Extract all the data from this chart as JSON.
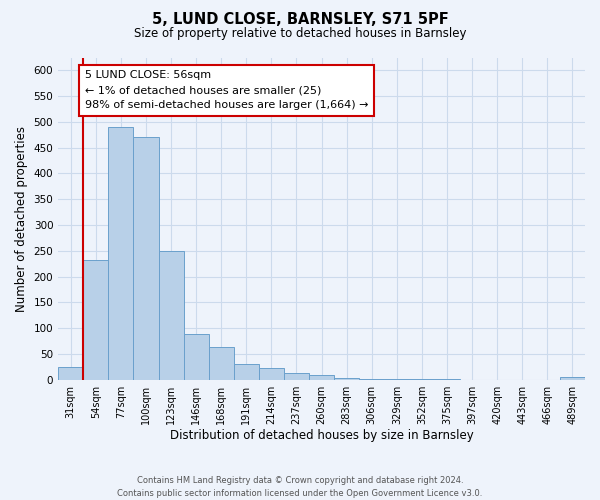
{
  "title": "5, LUND CLOSE, BARNSLEY, S71 5PF",
  "subtitle": "Size of property relative to detached houses in Barnsley",
  "xlabel": "Distribution of detached houses by size in Barnsley",
  "ylabel": "Number of detached properties",
  "footnote1": "Contains HM Land Registry data © Crown copyright and database right 2024.",
  "footnote2": "Contains public sector information licensed under the Open Government Licence v3.0.",
  "bar_labels": [
    "31sqm",
    "54sqm",
    "77sqm",
    "100sqm",
    "123sqm",
    "146sqm",
    "168sqm",
    "191sqm",
    "214sqm",
    "237sqm",
    "260sqm",
    "283sqm",
    "306sqm",
    "329sqm",
    "352sqm",
    "375sqm",
    "397sqm",
    "420sqm",
    "443sqm",
    "466sqm",
    "489sqm"
  ],
  "bar_values": [
    25,
    233,
    490,
    470,
    250,
    88,
    63,
    30,
    22,
    13,
    10,
    4,
    2,
    1,
    1,
    1,
    0,
    0,
    0,
    0,
    5
  ],
  "bar_color": "#b8d0e8",
  "bar_edge_color": "#6aa0cc",
  "vline_color": "#cc0000",
  "annotation_text": "5 LUND CLOSE: 56sqm\n← 1% of detached houses are smaller (25)\n98% of semi-detached houses are larger (1,664) →",
  "annotation_box_color": "#ffffff",
  "annotation_box_edge": "#cc0000",
  "ylim": [
    0,
    625
  ],
  "yticks": [
    0,
    50,
    100,
    150,
    200,
    250,
    300,
    350,
    400,
    450,
    500,
    550,
    600
  ],
  "grid_color": "#ccdaec",
  "background_color": "#eef3fb"
}
